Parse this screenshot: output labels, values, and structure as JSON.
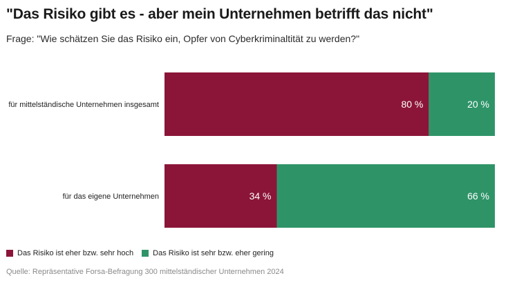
{
  "chart_data": {
    "type": "bar",
    "orientation": "horizontal",
    "stacked": true,
    "title": "\"Das Risiko gibt es - aber mein Unternehmen betrifft das nicht\"",
    "subtitle": "Frage: \"Wie schätzen Sie das Risiko ein, Opfer von Cyberkriminaltität zu werden?\"",
    "categories": [
      "für mittelständische Unternehmen insgesamt",
      "für das eigene Unternehmen"
    ],
    "series": [
      {
        "name": "Das Risiko ist eher bzw. sehr hoch",
        "values": [
          80,
          34
        ],
        "color": "#8b1538"
      },
      {
        "name": "Das Risiko ist sehr bzw. eher gering",
        "values": [
          20,
          66
        ],
        "color": "#2e9468"
      }
    ],
    "unit": "%",
    "xlim": [
      0,
      100
    ],
    "grid": false,
    "legend_position": "bottom-left",
    "source": "Quelle: Repräsentative Forsa-Befragung 300 mittelständischer Unternehmen 2024"
  }
}
